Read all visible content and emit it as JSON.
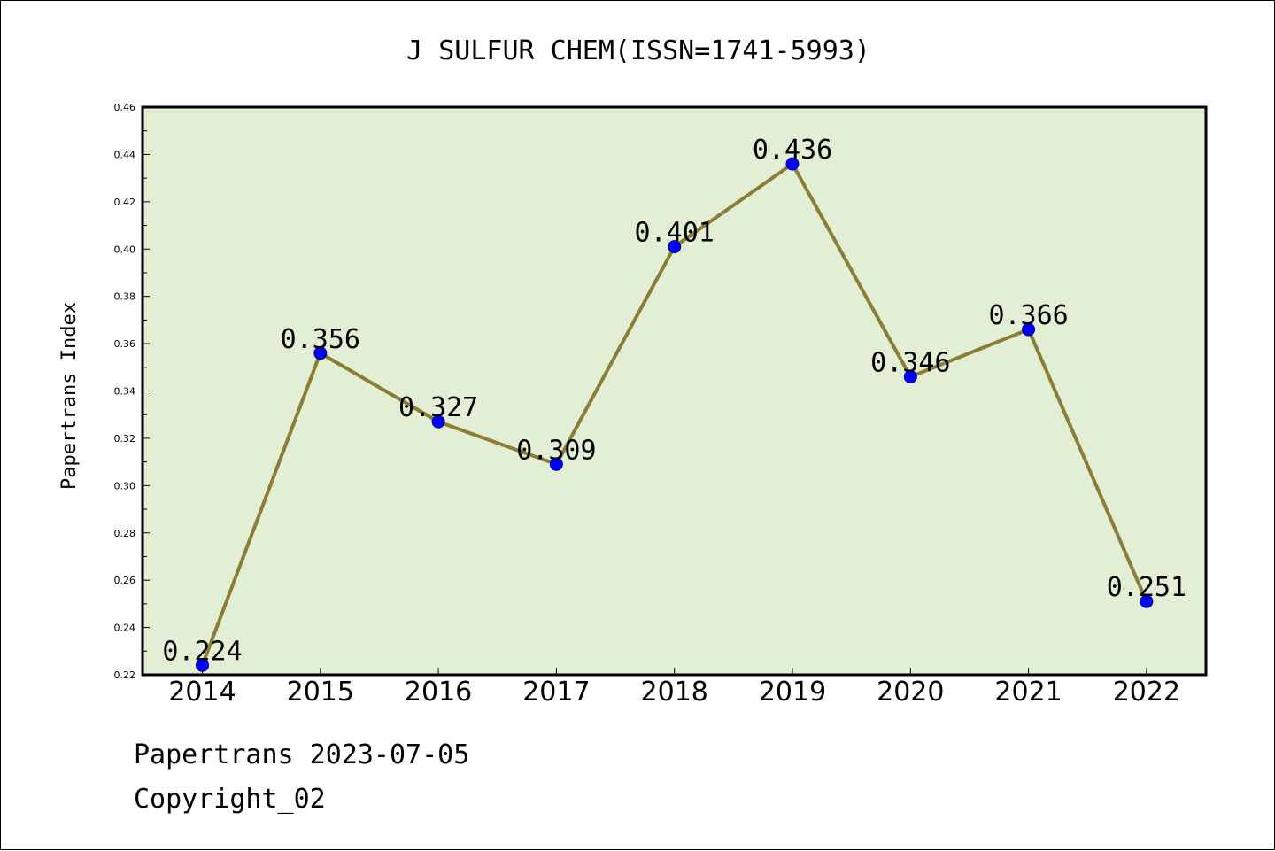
{
  "chart_data": {
    "type": "line",
    "title": "J SULFUR CHEM(ISSN=1741-5993)",
    "xlabel": "",
    "ylabel": "Papertrans Index",
    "categories": [
      "2014",
      "2015",
      "2016",
      "2017",
      "2018",
      "2019",
      "2020",
      "2021",
      "2022"
    ],
    "series": [
      {
        "values": [
          0.224,
          0.356,
          0.327,
          0.309,
          0.401,
          0.436,
          0.346,
          0.366,
          0.251
        ],
        "value_labels": [
          "0.224",
          "0.356",
          "0.327",
          "0.309",
          "0.401",
          "0.436",
          "0.346",
          "0.366",
          "0.251"
        ]
      }
    ],
    "ylim": [
      0.22,
      0.46
    ],
    "yticks": [
      "0.22",
      "0.24",
      "0.26",
      "0.28",
      "0.30",
      "0.32",
      "0.34",
      "0.36",
      "0.38",
      "0.40",
      "0.42",
      "0.44",
      "0.46"
    ],
    "grid": false,
    "colors": {
      "plot_background": "#e2efd4",
      "line": "#8b7d36",
      "marker": "#0000ff"
    }
  },
  "footer": {
    "line1": "Papertrans 2023-07-05",
    "line2": "Copyright_02"
  }
}
